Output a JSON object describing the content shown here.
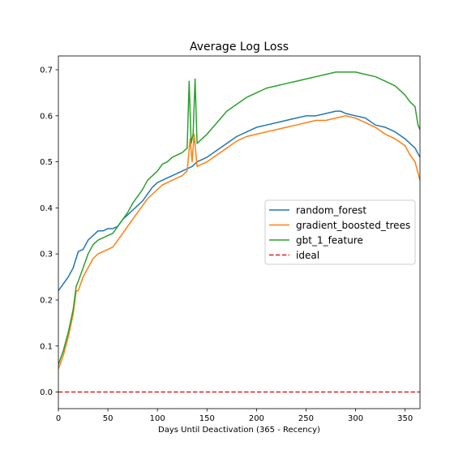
{
  "chart_data": {
    "type": "line",
    "title": "Average Log Loss",
    "xlabel": "Days Until Deactivation (365 - Recency)",
    "ylabel": "",
    "xlim": [
      0,
      365
    ],
    "ylim": [
      -0.036,
      0.73
    ],
    "xticks": [
      0,
      50,
      100,
      150,
      200,
      250,
      300,
      350
    ],
    "yticks": [
      0.0,
      0.1,
      0.2,
      0.3,
      0.4,
      0.5,
      0.6,
      0.7
    ],
    "grid": false,
    "legend_position": "center-right",
    "series": [
      {
        "name": "random_forest",
        "color": "#1f77b4",
        "style": "solid",
        "x": [
          0,
          5,
          10,
          15,
          20,
          25,
          30,
          35,
          40,
          45,
          50,
          55,
          60,
          65,
          70,
          75,
          80,
          85,
          90,
          95,
          100,
          105,
          110,
          115,
          120,
          125,
          130,
          135,
          140,
          145,
          150,
          160,
          170,
          180,
          190,
          200,
          210,
          220,
          230,
          240,
          250,
          260,
          270,
          280,
          285,
          290,
          300,
          310,
          320,
          330,
          340,
          350,
          355,
          360,
          365
        ],
        "y": [
          0.22,
          0.235,
          0.25,
          0.27,
          0.305,
          0.31,
          0.33,
          0.34,
          0.35,
          0.35,
          0.355,
          0.355,
          0.36,
          0.375,
          0.385,
          0.395,
          0.405,
          0.415,
          0.43,
          0.445,
          0.455,
          0.46,
          0.465,
          0.47,
          0.475,
          0.48,
          0.485,
          0.49,
          0.5,
          0.505,
          0.51,
          0.525,
          0.54,
          0.555,
          0.565,
          0.575,
          0.58,
          0.585,
          0.59,
          0.595,
          0.6,
          0.6,
          0.605,
          0.61,
          0.61,
          0.605,
          0.6,
          0.595,
          0.58,
          0.575,
          0.565,
          0.55,
          0.54,
          0.53,
          0.51
        ]
      },
      {
        "name": "gradient_boosted_trees",
        "color": "#ff7f0e",
        "style": "solid",
        "x": [
          0,
          5,
          10,
          15,
          18,
          20,
          25,
          30,
          35,
          40,
          45,
          50,
          55,
          60,
          65,
          70,
          75,
          80,
          85,
          90,
          95,
          100,
          105,
          110,
          115,
          120,
          125,
          130,
          133,
          135,
          137,
          140,
          145,
          150,
          160,
          170,
          180,
          190,
          200,
          210,
          220,
          230,
          240,
          250,
          260,
          270,
          280,
          290,
          300,
          310,
          320,
          330,
          340,
          350,
          355,
          360,
          365
        ],
        "y": [
          0.05,
          0.08,
          0.12,
          0.17,
          0.22,
          0.22,
          0.25,
          0.27,
          0.29,
          0.3,
          0.305,
          0.31,
          0.315,
          0.33,
          0.345,
          0.36,
          0.375,
          0.39,
          0.405,
          0.42,
          0.43,
          0.44,
          0.45,
          0.455,
          0.46,
          0.465,
          0.47,
          0.48,
          0.55,
          0.5,
          0.56,
          0.49,
          0.495,
          0.5,
          0.515,
          0.53,
          0.545,
          0.555,
          0.56,
          0.565,
          0.57,
          0.575,
          0.58,
          0.585,
          0.59,
          0.59,
          0.595,
          0.6,
          0.595,
          0.585,
          0.575,
          0.56,
          0.55,
          0.535,
          0.515,
          0.5,
          0.46
        ]
      },
      {
        "name": "gbt_1_feature",
        "color": "#2ca02c",
        "style": "solid",
        "x": [
          0,
          5,
          10,
          15,
          18,
          20,
          25,
          30,
          35,
          40,
          45,
          50,
          55,
          60,
          65,
          70,
          75,
          80,
          85,
          90,
          95,
          100,
          105,
          110,
          115,
          120,
          125,
          130,
          132,
          134,
          136,
          138,
          140,
          145,
          150,
          160,
          170,
          180,
          190,
          200,
          210,
          220,
          230,
          240,
          250,
          260,
          270,
          280,
          290,
          300,
          310,
          320,
          330,
          340,
          350,
          355,
          360,
          363,
          365
        ],
        "y": [
          0.06,
          0.09,
          0.13,
          0.18,
          0.23,
          0.24,
          0.27,
          0.3,
          0.32,
          0.33,
          0.335,
          0.34,
          0.345,
          0.36,
          0.375,
          0.39,
          0.41,
          0.425,
          0.44,
          0.46,
          0.47,
          0.48,
          0.495,
          0.5,
          0.51,
          0.515,
          0.52,
          0.53,
          0.675,
          0.54,
          0.56,
          0.68,
          0.54,
          0.55,
          0.56,
          0.585,
          0.61,
          0.625,
          0.64,
          0.65,
          0.66,
          0.665,
          0.67,
          0.675,
          0.68,
          0.685,
          0.69,
          0.695,
          0.695,
          0.695,
          0.69,
          0.685,
          0.675,
          0.665,
          0.645,
          0.63,
          0.62,
          0.58,
          0.57
        ]
      },
      {
        "name": "ideal",
        "color": "#d62728",
        "style": "dashed",
        "x": [
          0,
          365
        ],
        "y": [
          0.0,
          0.0
        ]
      }
    ]
  }
}
